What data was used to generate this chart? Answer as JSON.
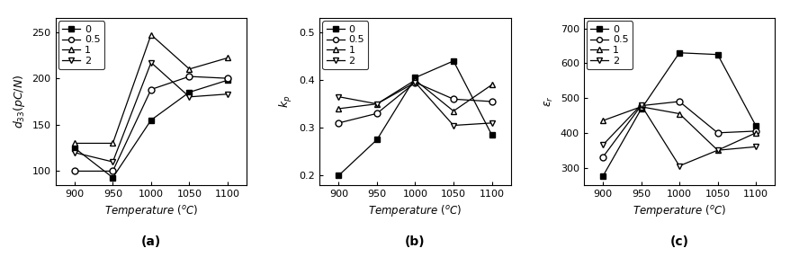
{
  "temperatures": [
    900,
    950,
    1000,
    1050,
    1100
  ],
  "chart_a": {
    "ylabel": "$d_{33}$$(pC/N)$",
    "ylim": [
      85,
      265
    ],
    "yticks": [
      100,
      150,
      200,
      250
    ],
    "series": {
      "0": [
        125,
        93,
        155,
        185,
        198
      ],
      "0.5": [
        100,
        100,
        188,
        202,
        200
      ],
      "1": [
        130,
        130,
        247,
        210,
        222
      ],
      "2": [
        120,
        110,
        217,
        180,
        183
      ]
    },
    "label": "(a)"
  },
  "chart_b": {
    "ylabel": "$k_p$",
    "ylim": [
      0.18,
      0.53
    ],
    "yticks": [
      0.2,
      0.3,
      0.4,
      0.5
    ],
    "series": {
      "0": [
        0.2,
        0.275,
        0.405,
        0.44,
        0.285
      ],
      "0.5": [
        0.31,
        0.33,
        0.395,
        0.36,
        0.355
      ],
      "1": [
        0.34,
        0.35,
        0.4,
        0.335,
        0.39
      ],
      "2": [
        0.365,
        0.35,
        0.395,
        0.305,
        0.31
      ]
    },
    "label": "(b)"
  },
  "chart_c": {
    "ylabel": "$\\varepsilon_r$",
    "ylim": [
      250,
      730
    ],
    "yticks": [
      300,
      400,
      500,
      600,
      700
    ],
    "series": {
      "0": [
        275,
        468,
        630,
        625,
        420
      ],
      "0.5": [
        330,
        478,
        490,
        400,
        405
      ],
      "1": [
        435,
        475,
        455,
        350,
        400
      ],
      "2": [
        365,
        480,
        305,
        350,
        360
      ]
    },
    "label": "(c)"
  },
  "legend_labels": [
    "0",
    "0.5",
    "1",
    "2"
  ],
  "markers": {
    "0": "s",
    "0.5": "o",
    "1": "^",
    "2": "v"
  },
  "fill": {
    "0": true,
    "0.5": false,
    "1": false,
    "2": false
  },
  "xticks": [
    900,
    950,
    1000,
    1050,
    1100
  ],
  "background_color": "#ffffff",
  "linewidth": 0.9,
  "markersize": 5
}
